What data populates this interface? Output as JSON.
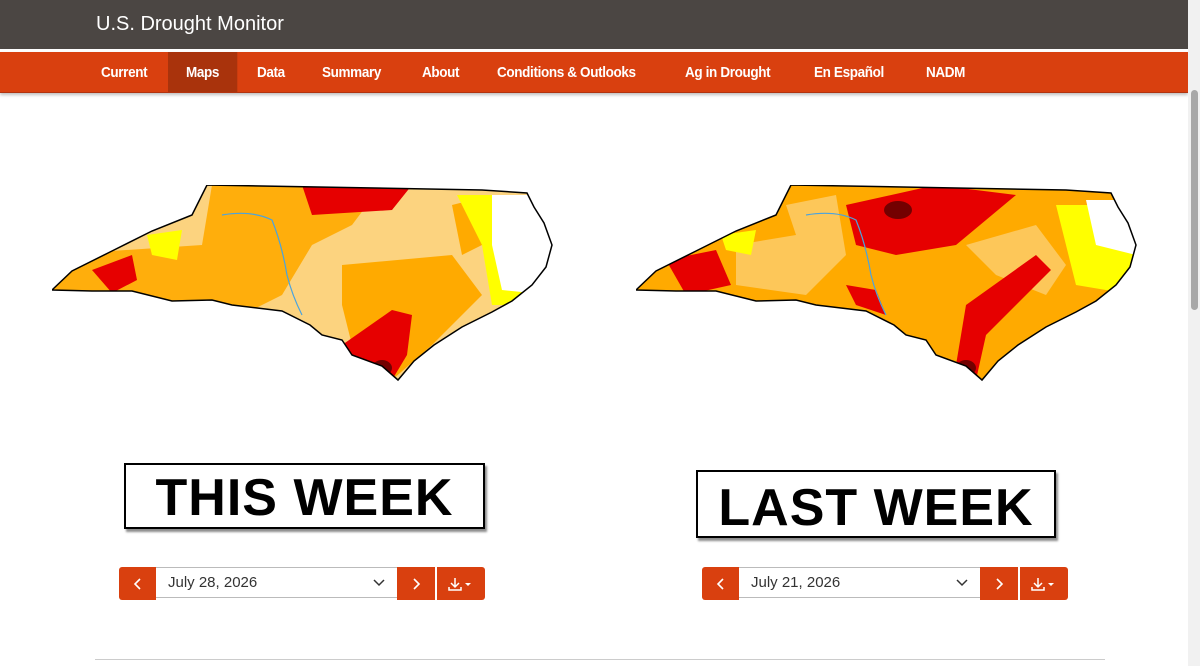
{
  "header": {
    "title": "U.S. Drought Monitor"
  },
  "nav": {
    "items": [
      "Current",
      "Maps",
      "Data",
      "Summary",
      "About",
      "Conditions & Outlooks",
      "Ag in Drought",
      "En Español",
      "NADM"
    ]
  },
  "panels": [
    {
      "label": "THIS WEEK",
      "date": "July 28, 2026"
    },
    {
      "label": "LAST WEEK",
      "date": "July 21, 2026"
    }
  ]
}
